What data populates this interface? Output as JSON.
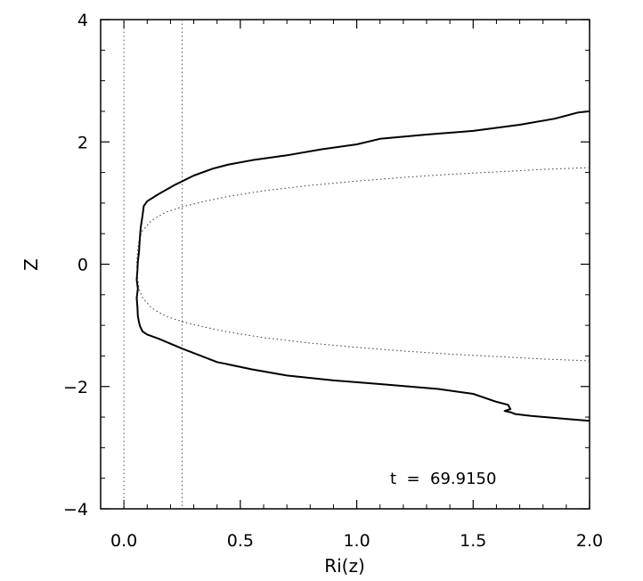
{
  "chart_data": {
    "type": "line",
    "xlabel": "Ri(z)",
    "ylabel": "Z",
    "xlim": [
      -0.1,
      2.0
    ],
    "ylim": [
      -4,
      4
    ],
    "xticks": [
      0.0,
      0.5,
      1.0,
      1.5,
      2.0
    ],
    "xtick_labels": [
      "0.0",
      "0.5",
      "1.0",
      "1.5",
      "2.0"
    ],
    "yticks": [
      -4,
      -2,
      0,
      2,
      4
    ],
    "ytick_labels": [
      "−4",
      "−2",
      "0",
      "2",
      "4"
    ],
    "grid": false,
    "annotation": "t  =  69.9150",
    "reference_lines": [
      {
        "x": 0.0,
        "style": "dotted"
      },
      {
        "x": 0.25,
        "style": "dotted"
      }
    ],
    "series": [
      {
        "style": "solid",
        "x": [
          2.0,
          1.95,
          1.85,
          1.7,
          1.5,
          1.3,
          1.1,
          1.0,
          0.85,
          0.7,
          0.55,
          0.45,
          0.38,
          0.3,
          0.22,
          0.15,
          0.1,
          0.085,
          0.08,
          0.072,
          0.068,
          0.065,
          0.06,
          0.058,
          0.055,
          0.06,
          0.055,
          0.058,
          0.06,
          0.065,
          0.07,
          0.08,
          0.1,
          0.15,
          0.25,
          0.4,
          0.55,
          0.7,
          0.9,
          1.1,
          1.35,
          1.5,
          1.6,
          1.65,
          1.66,
          1.635,
          1.66,
          1.68,
          1.75,
          1.9,
          2.0
        ],
        "y": [
          2.5,
          2.48,
          2.38,
          2.28,
          2.18,
          2.12,
          2.05,
          1.96,
          1.88,
          1.78,
          1.7,
          1.63,
          1.56,
          1.45,
          1.3,
          1.15,
          1.03,
          0.95,
          0.8,
          0.6,
          0.4,
          0.2,
          0.05,
          -0.1,
          -0.25,
          -0.4,
          -0.55,
          -0.7,
          -0.85,
          -0.95,
          -1.02,
          -1.1,
          -1.15,
          -1.22,
          -1.38,
          -1.6,
          -1.72,
          -1.82,
          -1.9,
          -1.96,
          -2.04,
          -2.12,
          -2.25,
          -2.3,
          -2.37,
          -2.4,
          -2.42,
          -2.45,
          -2.48,
          -2.53,
          -2.56
        ]
      },
      {
        "style": "dotted",
        "x": [
          2.0,
          1.8,
          1.6,
          1.4,
          1.2,
          1.0,
          0.8,
          0.6,
          0.45,
          0.35,
          0.25,
          0.18,
          0.12,
          0.08,
          0.065,
          0.058,
          0.055,
          0.058,
          0.065,
          0.08,
          0.12,
          0.18,
          0.25,
          0.35,
          0.45,
          0.6,
          0.8,
          1.0,
          1.2,
          1.4,
          1.6,
          1.8,
          2.0
        ],
        "y": [
          1.58,
          1.55,
          1.51,
          1.47,
          1.42,
          1.36,
          1.29,
          1.2,
          1.11,
          1.03,
          0.94,
          0.85,
          0.72,
          0.55,
          0.4,
          0.2,
          0.0,
          -0.2,
          -0.4,
          -0.55,
          -0.72,
          -0.85,
          -0.94,
          -1.03,
          -1.11,
          -1.2,
          -1.29,
          -1.36,
          -1.42,
          -1.47,
          -1.51,
          -1.55,
          -1.58
        ]
      }
    ]
  }
}
